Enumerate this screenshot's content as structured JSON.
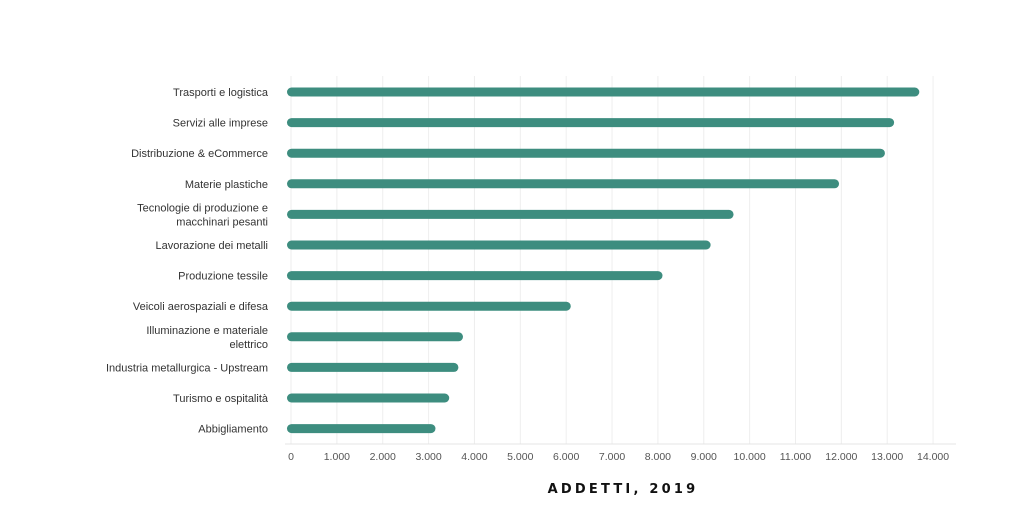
{
  "colors": {
    "bar": "#3d8d7f",
    "grid": "#eeeeee",
    "text": "#333333",
    "tick_text": "#555555"
  },
  "chart_data": {
    "type": "bar",
    "orientation": "horizontal",
    "title": "",
    "xlabel": "ADDETTI, 2019",
    "ylabel": "",
    "categories": [
      "Trasporti e logistica",
      "Servizi alle imprese",
      "Distribuzione & eCommerce",
      "Materie plastiche",
      "Tecnologie di produzione e macchinari pesanti",
      "Lavorazione dei metalli",
      "Produzione tessile",
      "Veicoli aerospaziali e difesa",
      "Illuminazione e materiale elettrico",
      "Industria metallurgica - Upstream",
      "Turismo e ospitalità",
      "Abbigliamento"
    ],
    "values": [
      13700,
      13150,
      12950,
      11950,
      9650,
      9150,
      8100,
      6100,
      3750,
      3650,
      3450,
      3150
    ],
    "xlim": [
      0,
      14500
    ],
    "ticks": [
      0,
      1000,
      2000,
      3000,
      4000,
      5000,
      6000,
      7000,
      8000,
      9000,
      10000,
      11000,
      12000,
      13000,
      14000
    ],
    "tick_labels": [
      "0",
      "1.000",
      "2.000",
      "3.000",
      "4.000",
      "5.000",
      "6.000",
      "7.000",
      "8.000",
      "9.000",
      "10.000",
      "11.000",
      "12.000",
      "13.000",
      "14.000"
    ],
    "grid": true,
    "legend": "none"
  }
}
